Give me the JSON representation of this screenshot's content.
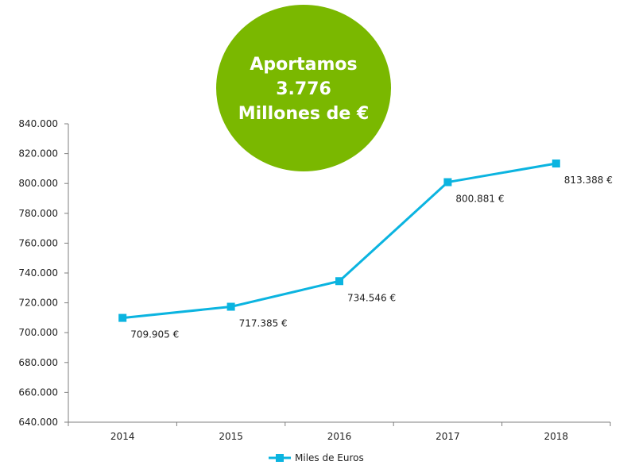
{
  "badge": {
    "lines": [
      "Aportamos",
      "3.776",
      "Millones de €"
    ],
    "color": "#7ab800"
  },
  "chart_data": {
    "type": "line",
    "categories": [
      "2014",
      "2015",
      "2016",
      "2017",
      "2018"
    ],
    "series": [
      {
        "name": "Miles de Euros",
        "values": [
          709905,
          717385,
          734546,
          800881,
          813388
        ],
        "data_labels": [
          "709.905 €",
          "717.385 €",
          "734.546 €",
          "800.881 €",
          "813.388 €"
        ],
        "color": "#0bb4e0"
      }
    ],
    "ylim": [
      640000,
      840000
    ],
    "yticks": [
      640000,
      660000,
      680000,
      700000,
      720000,
      740000,
      760000,
      780000,
      800000,
      820000,
      840000
    ],
    "ytick_labels": [
      "640.000",
      "660.000",
      "680.000",
      "700.000",
      "720.000",
      "740.000",
      "760.000",
      "780.000",
      "800.000",
      "820.000",
      "840.000"
    ],
    "grid": false,
    "legend_position": "bottom-center",
    "marker": "square"
  }
}
